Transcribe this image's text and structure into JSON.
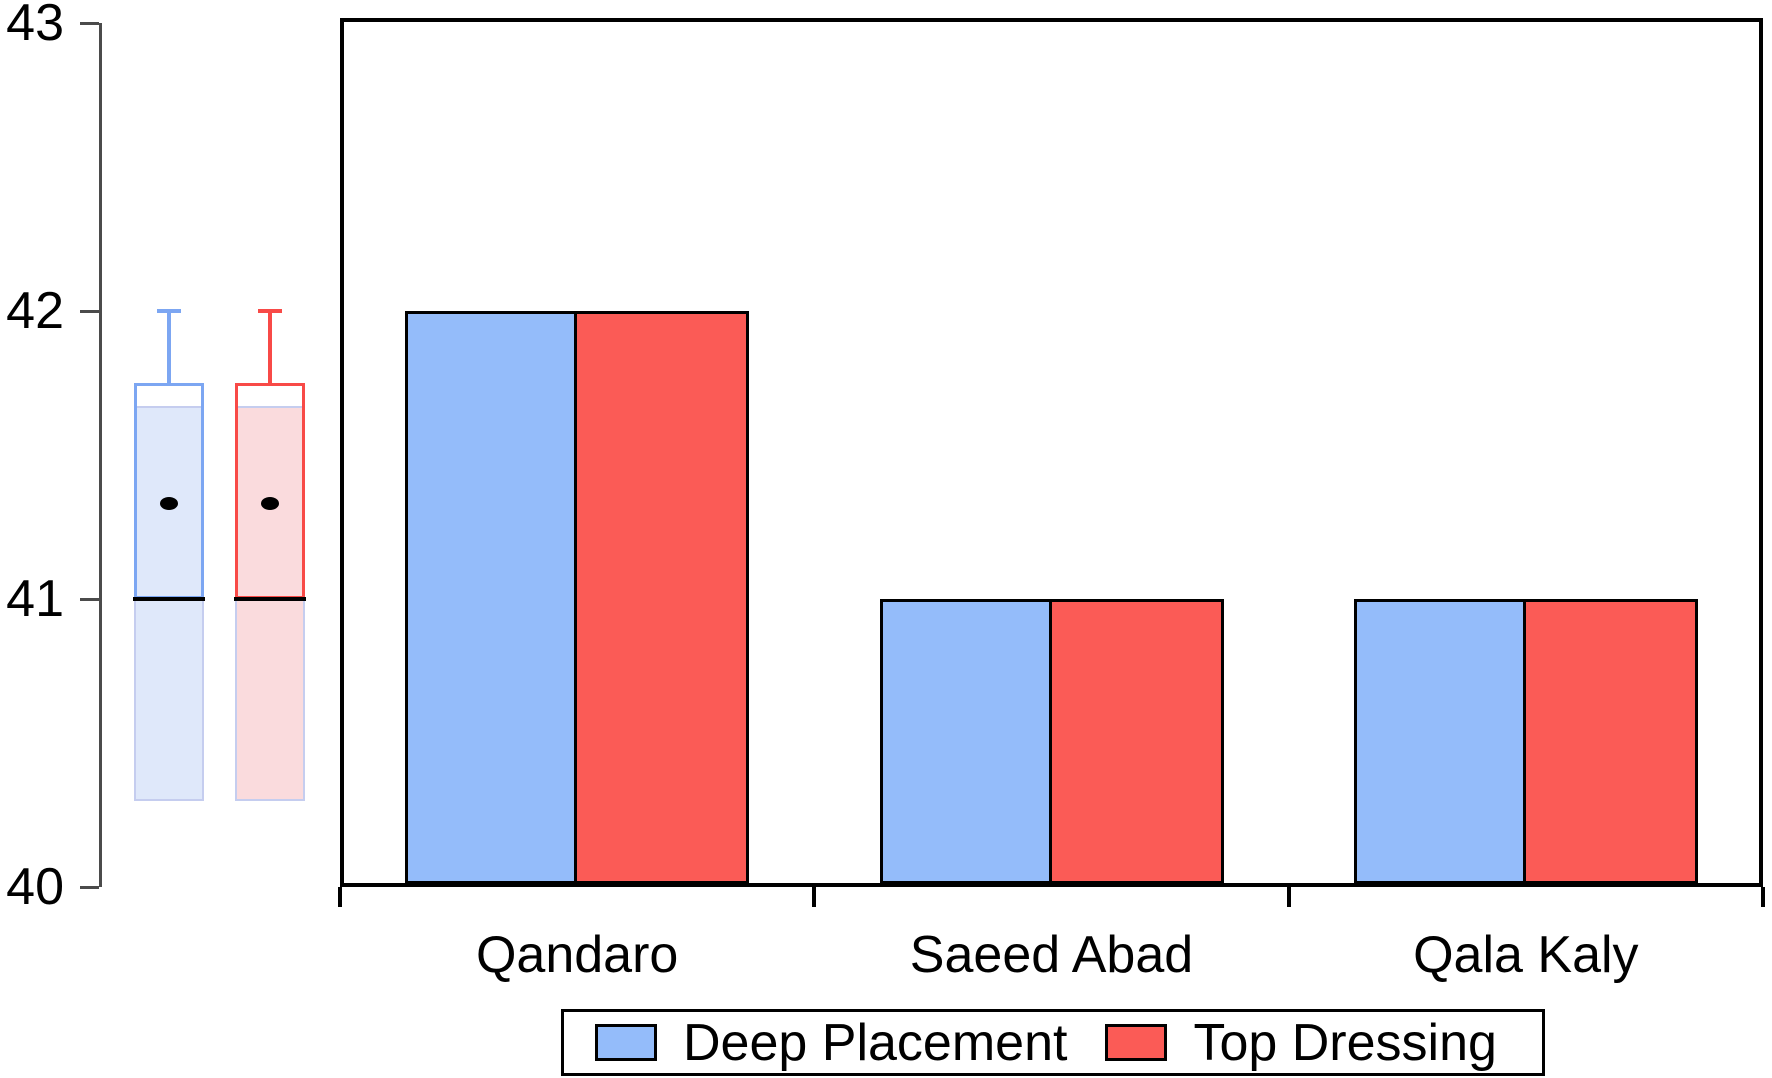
{
  "chart_data": {
    "type": "bar",
    "title": "",
    "xlabel": "",
    "ylabel": "",
    "categories": [
      "Qandaro",
      "Saeed Abad",
      "Qala Kaly"
    ],
    "series": [
      {
        "name": "Deep Placement",
        "values": [
          42,
          41,
          41
        ],
        "color": "#94BCFA",
        "edge_color": "#7CA6F2",
        "light_fill": "#DFE8FA"
      },
      {
        "name": "Top Dressing",
        "values": [
          42,
          41,
          41
        ],
        "color": "#FB5B56",
        "edge_color": "#F84A47",
        "light_fill": "#FADBDD"
      }
    ],
    "ylim": [
      40,
      43
    ],
    "yticks": [
      "40",
      "41",
      "42",
      "43"
    ],
    "grid": false,
    "legend_position": "bottom",
    "bar_edge_color": "#000000",
    "marginal_boxplots": [
      {
        "series": "Deep Placement",
        "whisker_top": 42.0,
        "box_top": 41.75,
        "fill_top": 41.67,
        "median": 41.0,
        "shade_bottom": 40.3,
        "mean": 41.33
      },
      {
        "series": "Top Dressing",
        "whisker_top": 42.0,
        "box_top": 41.75,
        "fill_top": 41.67,
        "median": 41.0,
        "shade_bottom": 40.3,
        "mean": 41.33
      }
    ]
  },
  "colors": {
    "axis_gray": "#4B4B4B",
    "plot_border": "#000000",
    "median_line": "#000000",
    "mean_dot": "#000000",
    "shade_border": "#C5CDEF",
    "background": "#FFFFFF"
  }
}
